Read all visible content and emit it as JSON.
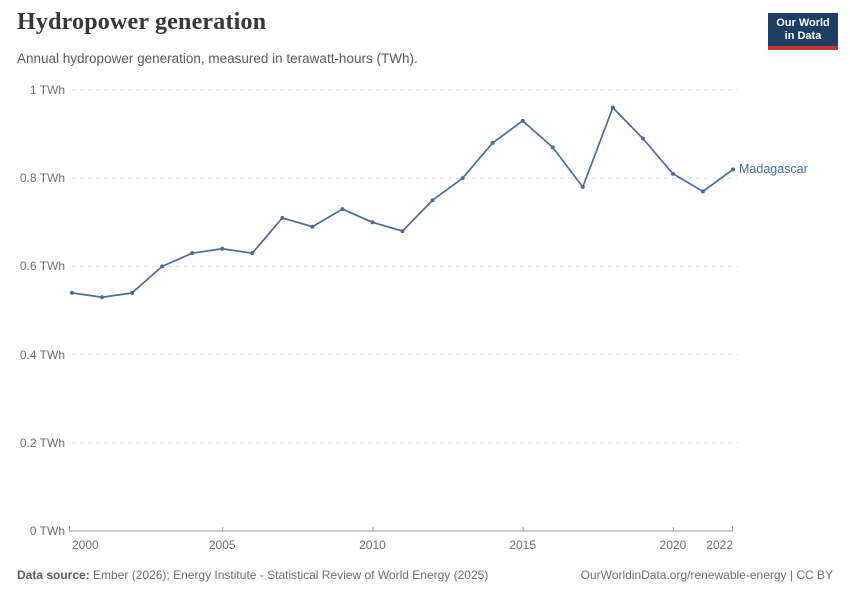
{
  "header": {
    "title": "Hydropower generation",
    "subtitle": "Annual hydropower generation, measured in terawatt-hours (TWh).",
    "logo": {
      "line1": "Our World",
      "line2": "in Data",
      "bg_color": "#1d3d63",
      "accent_color": "#c5362c"
    }
  },
  "chart_data": {
    "type": "line",
    "title": "Hydropower generation",
    "xlabel": "",
    "ylabel": "TWh",
    "xlim": [
      2000,
      2022
    ],
    "ylim": [
      0,
      1
    ],
    "grid": "horizontal-dashed",
    "legend_position": "end-of-line-label",
    "x_ticks": [
      2000,
      2005,
      2010,
      2015,
      2020,
      2022
    ],
    "y_ticks": [
      {
        "value": 0,
        "label": "0 TWh"
      },
      {
        "value": 0.2,
        "label": "0.2 TWh"
      },
      {
        "value": 0.4,
        "label": "0.4 TWh"
      },
      {
        "value": 0.6,
        "label": "0.6 TWh"
      },
      {
        "value": 0.8,
        "label": "0.8 TWh"
      },
      {
        "value": 1,
        "label": "1 TWh"
      }
    ],
    "series": [
      {
        "name": "Madagascar",
        "color": "#4C6A9C",
        "x": [
          2000,
          2001,
          2002,
          2003,
          2004,
          2005,
          2006,
          2007,
          2008,
          2009,
          2010,
          2011,
          2012,
          2013,
          2014,
          2015,
          2016,
          2017,
          2018,
          2019,
          2020,
          2021,
          2022
        ],
        "values": [
          0.54,
          0.53,
          0.54,
          0.6,
          0.63,
          0.64,
          0.63,
          0.71,
          0.69,
          0.73,
          0.7,
          0.68,
          0.75,
          0.8,
          0.88,
          0.93,
          0.87,
          0.78,
          0.96,
          0.89,
          0.81,
          0.77,
          0.82
        ]
      }
    ]
  },
  "footer": {
    "datasource_label": "Data source:",
    "datasource_text": " Ember (2026); Energy Institute - Statistical Review of World Energy (2025)",
    "link": "OurWorldinData.org/renewable-energy | CC BY"
  }
}
